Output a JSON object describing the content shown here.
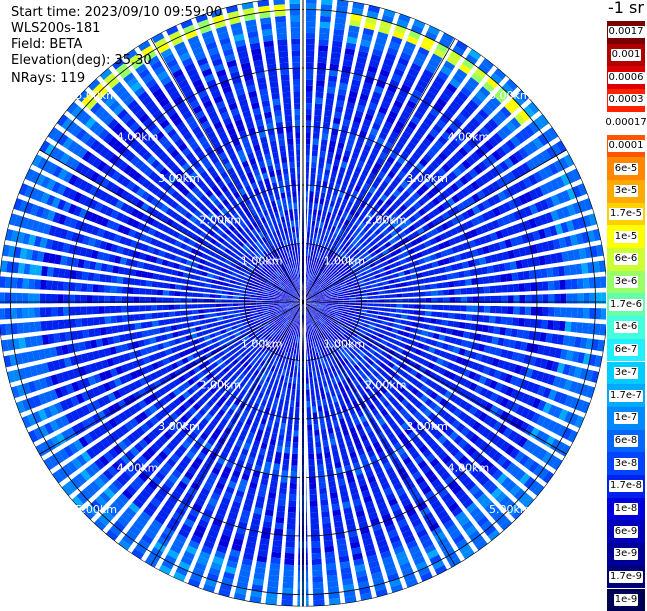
{
  "header": {
    "start_time_label": "Start time:",
    "start_time": "2023/09/10 09:59:00",
    "instrument": "WLS200s-181",
    "field_label": "Field:",
    "field": "BETA",
    "elevation_label": "Elevation(deg):",
    "elevation": "35.30",
    "nrays_label": "NRays:",
    "nrays": "119"
  },
  "colorbar": {
    "title": "-1 sr",
    "labels": [
      "0.0017",
      "0.001",
      "0.0006",
      "0.0003",
      "0.00017",
      "0.0001",
      "6e-5",
      "3e-5",
      "1.7e-5",
      "1e-5",
      "6e-6",
      "3e-6",
      "1.7e-6",
      "1e-6",
      "6e-7",
      "3e-7",
      "1.7e-7",
      "1e-7",
      "6e-8",
      "3e-8",
      "1.7e-8",
      "1e-8",
      "6e-9",
      "3e-9",
      "1.7e-9",
      "1e-9"
    ],
    "colors": [
      "#7a0000",
      "#b00000",
      "#dd0000",
      "#ff2200",
      "#ffffff",
      "#ff5500",
      "#ff8800",
      "#ffaa00",
      "#ffd000",
      "#ffff00",
      "#ccff33",
      "#99ff66",
      "#66ffaa",
      "#44ffdd",
      "#22eeff",
      "#00ccff",
      "#00aaff",
      "#0088ff",
      "#0066ff",
      "#0044ff",
      "#0022ee",
      "#0000dd",
      "#0000bb",
      "#000099",
      "#000077",
      "#000055"
    ]
  },
  "chart_data": {
    "type": "heatmap",
    "projection": "polar",
    "range_unit": "km",
    "range_rings": [
      1.0,
      2.0,
      3.0,
      4.0,
      5.0
    ],
    "range_ring_labels": [
      "1.00km",
      "2.00km",
      "3.00km",
      "4.00km",
      "5.00km"
    ],
    "max_range_km": 5.2,
    "rays": 119,
    "azimuth_lines_deg": [
      0,
      30,
      60,
      90,
      120,
      150,
      180,
      210,
      240,
      270,
      300,
      330
    ],
    "approx_value_bands": [
      {
        "range_km": [
          0.0,
          1.0
        ],
        "value": "1e-8"
      },
      {
        "range_km": [
          1.0,
          4.5
        ],
        "value": "1.7e-8"
      },
      {
        "range_km": [
          4.5,
          5.2
        ],
        "value": "6e-8"
      }
    ],
    "hotspots": [
      {
        "azimuth_deg": 30,
        "range_km": 4.9,
        "value": "1e-5"
      },
      {
        "azimuth_deg": 335,
        "range_km": 5.0,
        "value": "1e-5"
      },
      {
        "azimuth_deg": 180,
        "range_km": 5.1,
        "value": "1e-7"
      }
    ]
  }
}
